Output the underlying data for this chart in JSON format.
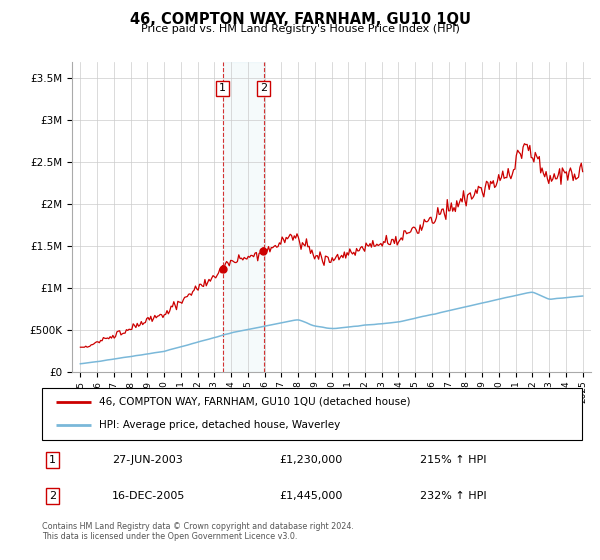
{
  "title": "46, COMPTON WAY, FARNHAM, GU10 1QU",
  "subtitle": "Price paid vs. HM Land Registry's House Price Index (HPI)",
  "legend_line1": "46, COMPTON WAY, FARNHAM, GU10 1QU (detached house)",
  "legend_line2": "HPI: Average price, detached house, Waverley",
  "footer": "Contains HM Land Registry data © Crown copyright and database right 2024.\nThis data is licensed under the Open Government Licence v3.0.",
  "sale1_label": "1",
  "sale1_date": "27-JUN-2003",
  "sale1_price": "£1,230,000",
  "sale1_hpi": "215% ↑ HPI",
  "sale2_label": "2",
  "sale2_date": "16-DEC-2005",
  "sale2_price": "£1,445,000",
  "sale2_hpi": "232% ↑ HPI",
  "hpi_color": "#7ab8d9",
  "price_color": "#cc0000",
  "sale1_year": 2003.5,
  "sale2_year": 2005.95,
  "ylim_max": 3700000,
  "ylabel_ticks": [
    0,
    500000,
    1000000,
    1500000,
    2000000,
    2500000,
    3000000,
    3500000
  ],
  "ylabel_labels": [
    "£0",
    "£500K",
    "£1M",
    "£1.5M",
    "£2M",
    "£2.5M",
    "£3M",
    "£3.5M"
  ],
  "xmin": 1994.5,
  "xmax": 2025.5
}
